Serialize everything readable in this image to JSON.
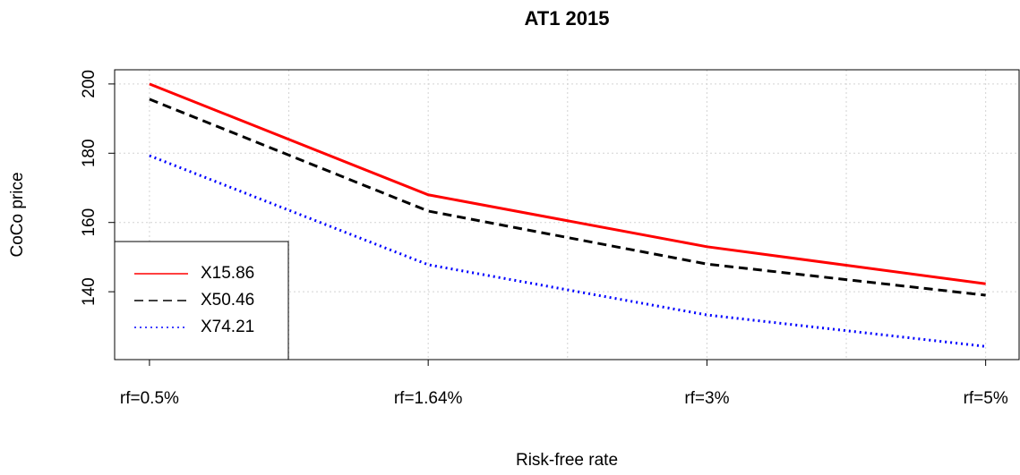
{
  "chart_data": {
    "type": "line",
    "title": "AT1 2015",
    "x_label": "Risk-free rate",
    "y_label": "CoCo price",
    "x": [
      1,
      2,
      3,
      4
    ],
    "xticks": [
      {
        "value": 1,
        "label": "rf=0.5%"
      },
      {
        "value": 2,
        "label": "rf=1.64%"
      },
      {
        "value": 3,
        "label": "rf=3%"
      },
      {
        "value": 4,
        "label": "rf=5%"
      }
    ],
    "xgrid": [
      1,
      1.5,
      2,
      2.5,
      3,
      3.5,
      4
    ],
    "xlim": [
      0.875,
      4.12
    ],
    "ylim": [
      120.4,
      204.1
    ],
    "yticks": [
      140,
      160,
      180,
      200
    ],
    "grid": true,
    "legend": "bottomleft",
    "series": [
      {
        "name": "X15.86",
        "color": "#ff0000",
        "dash": "solid",
        "values": [
          200,
          168,
          153,
          142.3
        ]
      },
      {
        "name": "X50.46",
        "color": "#000000",
        "dash": "dashed",
        "values": [
          195.6,
          163.3,
          148,
          139
        ]
      },
      {
        "name": "X74.21",
        "color": "#0000ff",
        "dash": "dotted",
        "values": [
          179.3,
          147.8,
          133.3,
          124.2
        ]
      }
    ]
  }
}
